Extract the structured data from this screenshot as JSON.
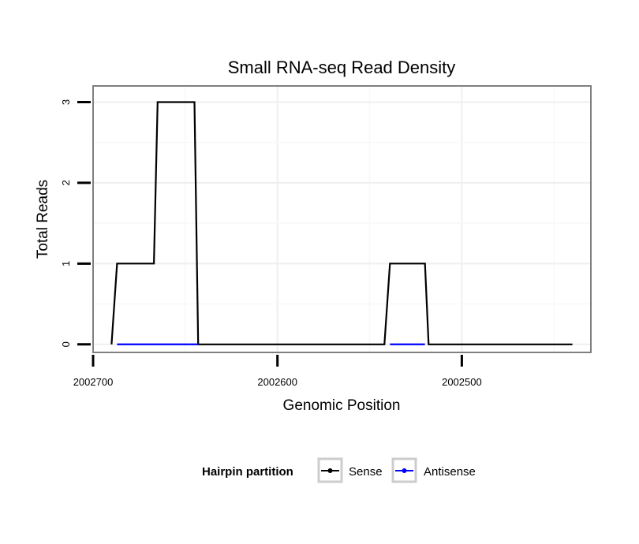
{
  "chart_data": {
    "type": "line",
    "title": "Small RNA-seq Read Density",
    "xlabel": "Genomic Position",
    "ylabel": "Total Reads",
    "xlim": [
      2002700,
      2002430
    ],
    "x_reversed": true,
    "ylim": [
      -0.1,
      3.2
    ],
    "x_ticks": [
      2002700,
      2002600,
      2002500
    ],
    "x_tick_labels": [
      "2002700",
      "2002600",
      "2002500"
    ],
    "y_ticks": [
      0,
      1,
      2,
      3
    ],
    "y_tick_labels": [
      "0",
      "1",
      "2",
      "3"
    ],
    "grid": true,
    "legend": {
      "title": "Hairpin partition",
      "position": "bottom",
      "entries": [
        "Sense",
        "Antisense"
      ]
    },
    "series": [
      {
        "name": "Sense",
        "color": "#000000",
        "x": [
          2002690,
          2002687,
          2002667,
          2002665,
          2002645,
          2002643,
          2002542,
          2002539,
          2002520,
          2002518,
          2002440
        ],
        "y": [
          0,
          1,
          1,
          3,
          3,
          0,
          0,
          1,
          1,
          0,
          0
        ]
      },
      {
        "name": "Antisense",
        "color": "#0000ff",
        "x": [
          2002687,
          2002643,
          2002539,
          2002520
        ],
        "y": [
          0,
          0,
          0,
          0
        ]
      }
    ]
  }
}
